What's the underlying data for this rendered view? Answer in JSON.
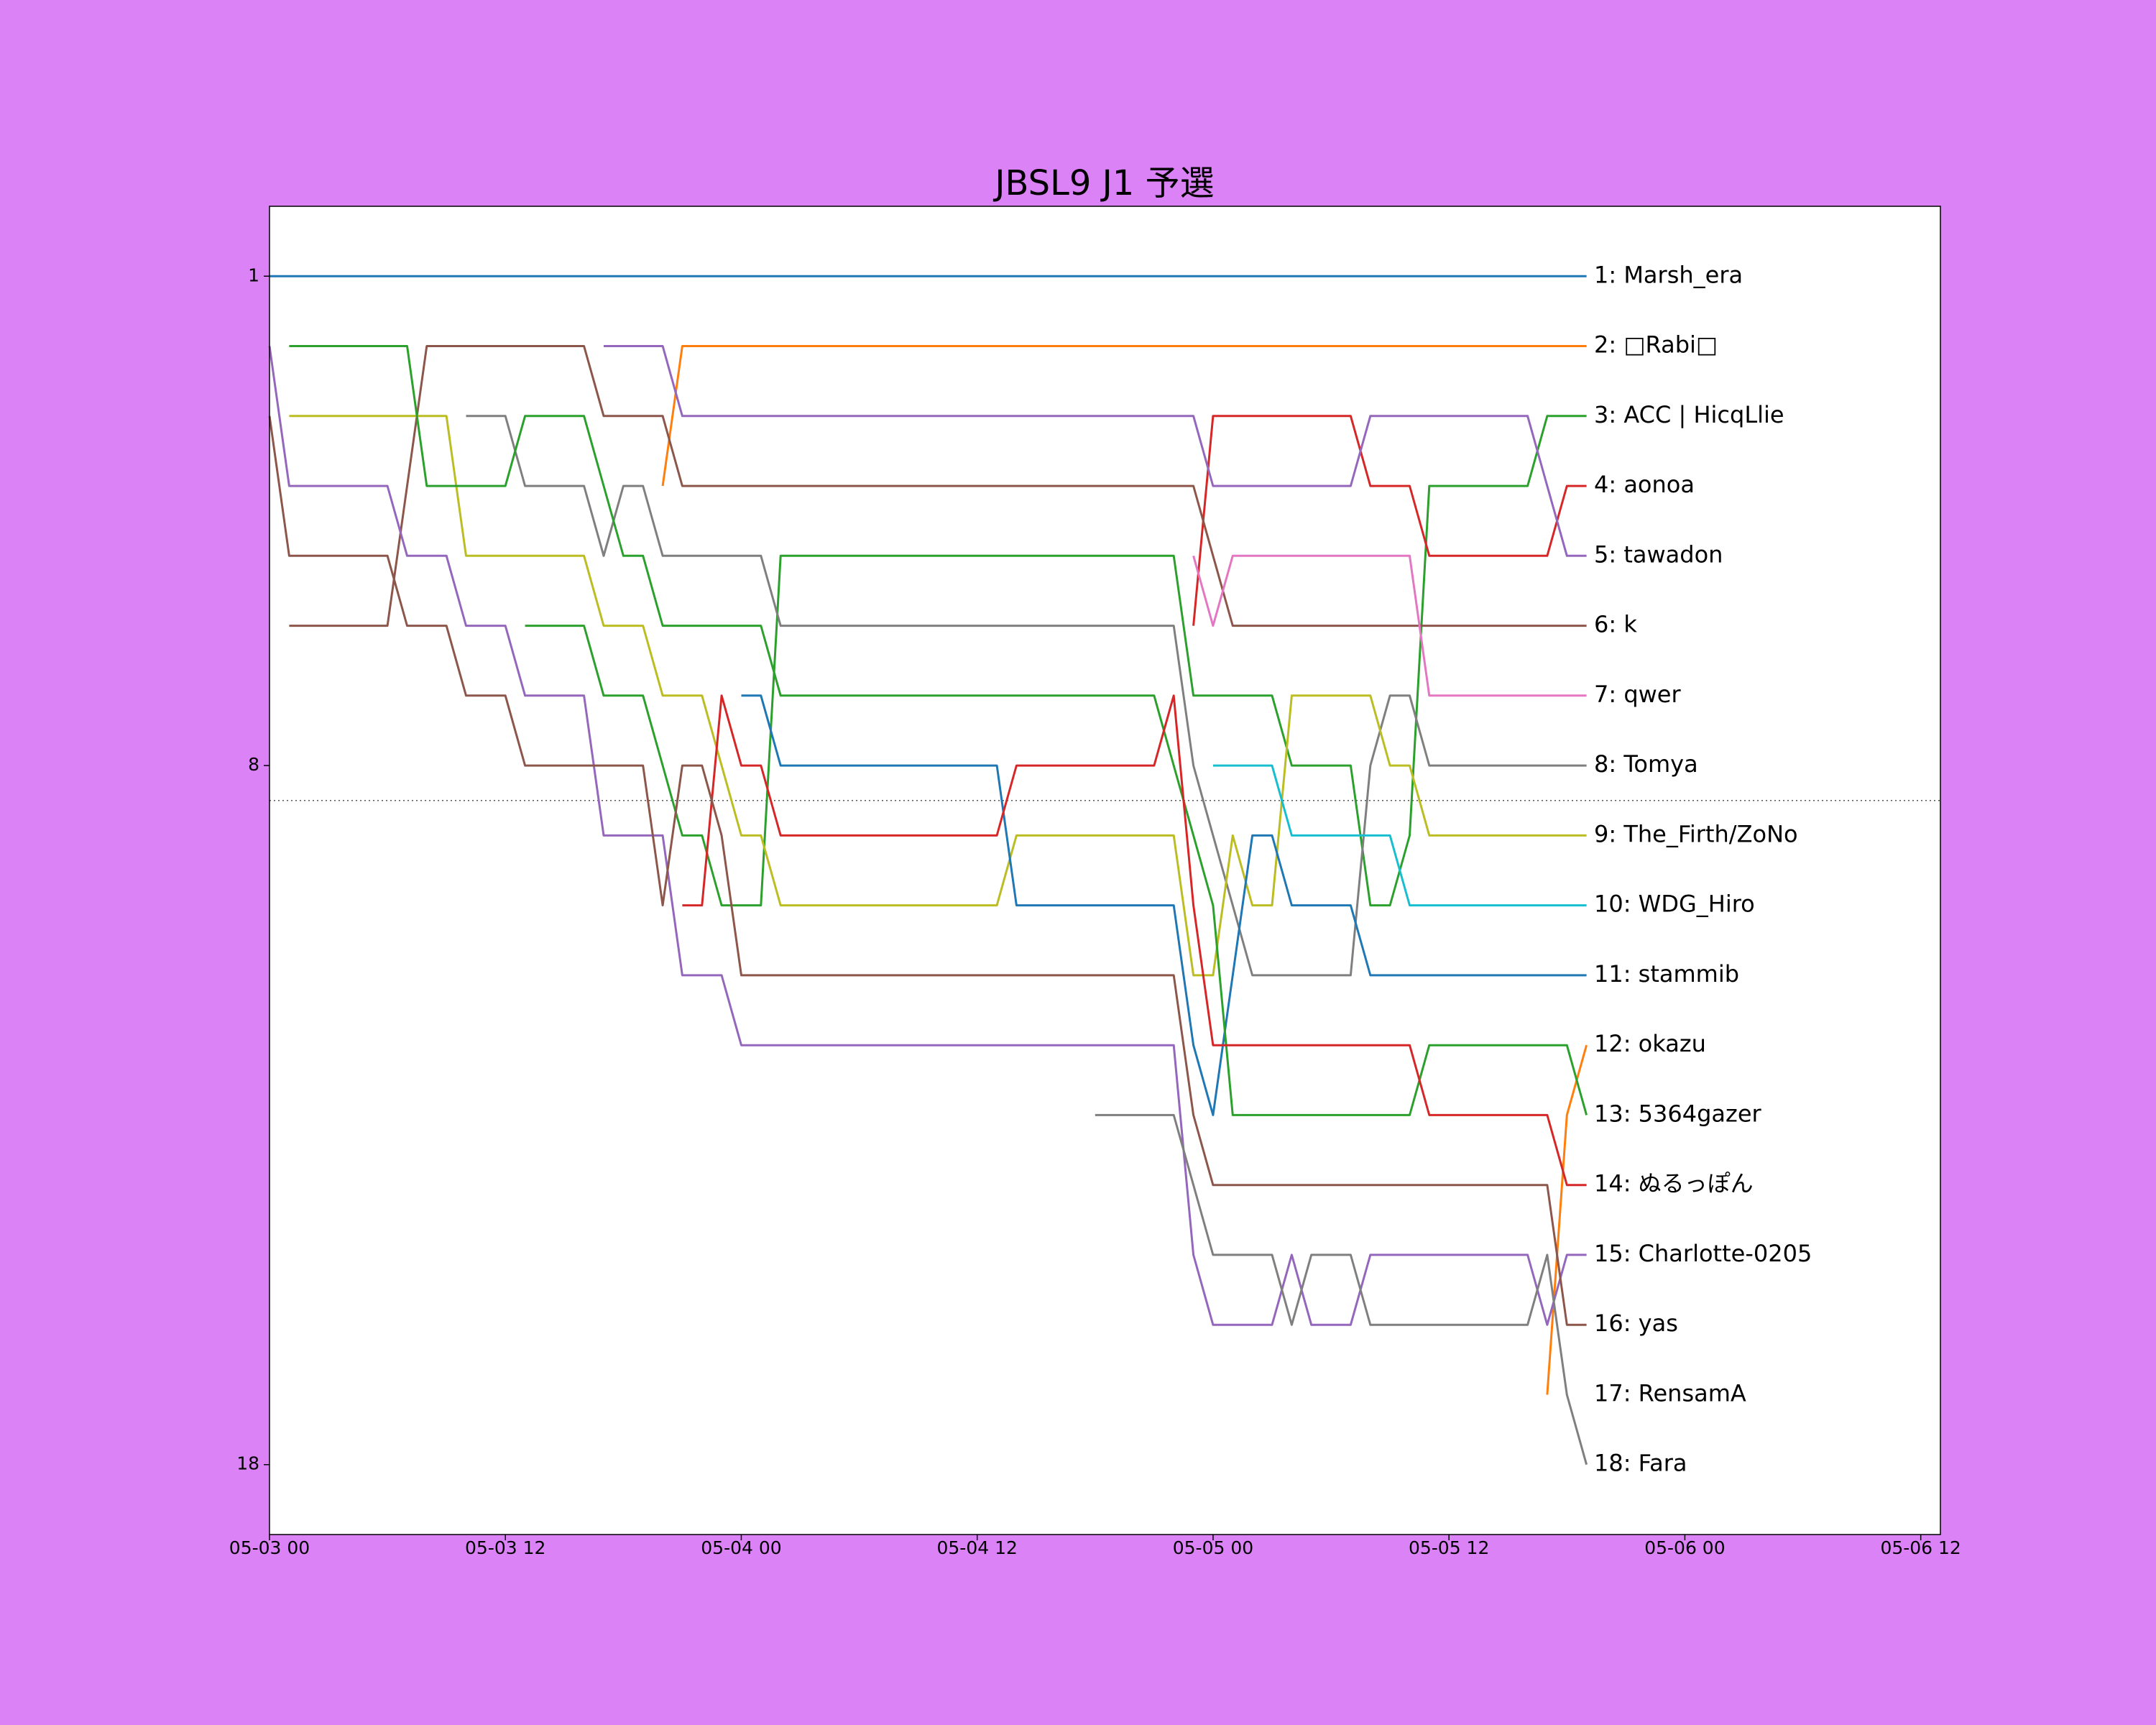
{
  "chart_data": {
    "type": "line",
    "title": "JBSL9 J1 予選",
    "xlim": [
      "05-03 00",
      "05-06 13"
    ],
    "xticks": [
      "05-03 00",
      "05-03 12",
      "05-04 00",
      "05-04 12",
      "05-05 00",
      "05-05 12",
      "05-06 00",
      "05-06 12"
    ],
    "ylim": [
      19,
      0
    ],
    "yticks": [
      1,
      8,
      18
    ],
    "threshold": 8.5,
    "series": [
      {
        "name": "1: Marsh_era",
        "color": "#1f77b4",
        "x": [
          "05-03 00",
          "05-05 19"
        ],
        "values": [
          1,
          1
        ]
      },
      {
        "name": "2: □Rabi□",
        "color": "#ff7f0e",
        "x": [
          "05-03 20",
          "05-03 21",
          "05-05 19"
        ],
        "values": [
          4,
          2,
          2
        ]
      },
      {
        "name": "3: ACC | HicqLlie",
        "color": "#2ca02c",
        "x": [
          "05-03 13",
          "05-03 16",
          "05-03 17",
          "05-03 19",
          "05-03 20",
          "05-03 21",
          "05-03 22",
          "05-03 23",
          "05-04 01",
          "05-04 02",
          "05-04 22",
          "05-04 23",
          "05-05 03",
          "05-05 04",
          "05-05 07",
          "05-05 08",
          "05-05 09",
          "05-05 10",
          "05-05 11",
          "05-05 16",
          "05-05 17",
          "05-05 19"
        ],
        "values": [
          6,
          6,
          7,
          7,
          8,
          9,
          9,
          10,
          10,
          5,
          5,
          7,
          7,
          8,
          8,
          10,
          10,
          9,
          4,
          4,
          3,
          3
        ]
      },
      {
        "name": "4: aonoa",
        "color": "#d62728",
        "x": [
          "05-04 23",
          "05-05 00",
          "05-05 07",
          "05-05 08",
          "05-05 10",
          "05-05 11",
          "05-05 17",
          "05-05 18",
          "05-05 19"
        ],
        "values": [
          6,
          3,
          3,
          4,
          4,
          5,
          5,
          4,
          4
        ]
      },
      {
        "name": "5: tawadon",
        "color": "#9467bd",
        "x": [
          "05-03 17",
          "05-03 20",
          "05-03 21",
          "05-04 23",
          "05-05 00",
          "05-05 07",
          "05-05 08",
          "05-05 16",
          "05-05 17",
          "05-05 18",
          "05-05 19"
        ],
        "values": [
          2,
          2,
          3,
          3,
          4,
          4,
          3,
          3,
          4,
          5,
          5
        ]
      },
      {
        "name": "6: k",
        "color": "#8c564b",
        "x": [
          "05-03 01",
          "05-03 06",
          "05-03 07",
          "05-03 08",
          "05-03 16",
          "05-03 17",
          "05-03 20",
          "05-03 21",
          "05-04 23",
          "05-05 00",
          "05-05 01",
          "05-05 19"
        ],
        "values": [
          6,
          6,
          4,
          2,
          2,
          3,
          3,
          4,
          4,
          5,
          6,
          6
        ]
      },
      {
        "name": "7: qwer",
        "color": "#e377c2",
        "x": [
          "05-04 23",
          "05-05 00",
          "05-05 01",
          "05-05 10",
          "05-05 11",
          "05-05 19"
        ],
        "values": [
          5,
          6,
          5,
          5,
          7,
          7
        ]
      },
      {
        "name": "8: Tomya",
        "color": "#7f7f7f",
        "x": [
          "05-03 10",
          "05-03 12",
          "05-03 13",
          "05-03 16",
          "05-03 17",
          "05-03 18",
          "05-03 19",
          "05-03 20",
          "05-04 01",
          "05-04 02",
          "05-04 22",
          "05-04 23",
          "05-05 00",
          "05-05 01",
          "05-05 02",
          "05-05 07",
          "05-05 08",
          "05-05 09",
          "05-05 10",
          "05-05 11",
          "05-05 19"
        ],
        "values": [
          3,
          3,
          4,
          4,
          5,
          4,
          4,
          5,
          5,
          6,
          6,
          8,
          9,
          10,
          11,
          11,
          8,
          7,
          7,
          8,
          8
        ]
      },
      {
        "name": "9: The_Firth/ZoNo",
        "color": "#bcbd22",
        "x": [
          "05-03 01",
          "05-03 09",
          "05-03 10",
          "05-03 16",
          "05-03 17",
          "05-03 19",
          "05-03 20",
          "05-03 22",
          "05-03 23",
          "05-04 00",
          "05-04 01",
          "05-04 02",
          "05-04 13",
          "05-04 14",
          "05-04 22",
          "05-04 23",
          "05-05 00",
          "05-05 01",
          "05-05 02",
          "05-05 03",
          "05-05 04",
          "05-05 08",
          "05-05 09",
          "05-05 10",
          "05-05 11",
          "05-05 19"
        ],
        "values": [
          3,
          3,
          5,
          5,
          6,
          6,
          7,
          7,
          8,
          9,
          9,
          10,
          10,
          9,
          9,
          11,
          11,
          9,
          10,
          10,
          7,
          7,
          8,
          8,
          9,
          9
        ]
      },
      {
        "name": "10: WDG_Hiro",
        "color": "#17becf",
        "x": [
          "05-05 00",
          "05-05 03",
          "05-05 04",
          "05-05 09",
          "05-05 10",
          "05-05 19"
        ],
        "values": [
          8,
          8,
          9,
          9,
          10,
          10
        ]
      },
      {
        "name": "11: stammib",
        "color": "#1f77b4",
        "x": [
          "05-04 00",
          "05-04 01",
          "05-04 02",
          "05-04 13",
          "05-04 14",
          "05-04 22",
          "05-04 23",
          "05-05 00",
          "05-05 01",
          "05-05 02",
          "05-05 03",
          "05-05 04",
          "05-05 07",
          "05-05 08",
          "05-05 19"
        ],
        "values": [
          7,
          7,
          8,
          8,
          10,
          10,
          12,
          13,
          11,
          9,
          9,
          10,
          10,
          11,
          11
        ]
      },
      {
        "name": "12: okazu",
        "color": "#ff7f0e",
        "x": [
          "05-05 17",
          "05-05 18",
          "05-05 19"
        ],
        "values": [
          17,
          13,
          12
        ]
      },
      {
        "name": "13: 5364gazer",
        "color": "#2ca02c",
        "x": [
          "05-03 01",
          "05-03 07",
          "05-03 08",
          "05-03 12",
          "05-03 13",
          "05-03 16",
          "05-03 17",
          "05-03 18",
          "05-03 19",
          "05-03 20",
          "05-04 01",
          "05-04 02",
          "05-04 21",
          "05-04 22",
          "05-04 23",
          "05-05 00",
          "05-05 01",
          "05-05 10",
          "05-05 11",
          "05-05 18",
          "05-05 19"
        ],
        "values": [
          2,
          2,
          4,
          4,
          3,
          3,
          4,
          5,
          5,
          6,
          6,
          7,
          7,
          8,
          9,
          10,
          13,
          13,
          12,
          12,
          13
        ]
      },
      {
        "name": "14: ぬるっぽん",
        "color": "#d62728",
        "x": [
          "05-03 21",
          "05-03 22",
          "05-03 23",
          "05-04 00",
          "05-04 01",
          "05-04 02",
          "05-04 13",
          "05-04 14",
          "05-04 21",
          "05-04 22",
          "05-04 23",
          "05-05 00",
          "05-05 10",
          "05-05 11",
          "05-05 17",
          "05-05 18",
          "05-05 19"
        ],
        "values": [
          10,
          10,
          7,
          8,
          8,
          9,
          9,
          8,
          8,
          7,
          10,
          12,
          12,
          13,
          13,
          14,
          14
        ]
      },
      {
        "name": "15: Charlotte-0205",
        "color": "#9467bd",
        "x": [
          "05-03 00",
          "05-03 01",
          "05-03 06",
          "05-03 07",
          "05-03 09",
          "05-03 10",
          "05-03 12",
          "05-03 13",
          "05-03 16",
          "05-03 17",
          "05-03 20",
          "05-03 21",
          "05-03 23",
          "05-04 00",
          "05-04 22",
          "05-04 23",
          "05-05 00",
          "05-05 03",
          "05-05 04",
          "05-05 05",
          "05-05 07",
          "05-05 08",
          "05-05 16",
          "05-05 17",
          "05-05 18",
          "05-05 19"
        ],
        "values": [
          2,
          4,
          4,
          5,
          5,
          6,
          6,
          7,
          7,
          9,
          9,
          11,
          11,
          12,
          12,
          15,
          16,
          16,
          15,
          16,
          16,
          15,
          15,
          16,
          15,
          15
        ]
      },
      {
        "name": "16: yas",
        "color": "#8c564b",
        "x": [
          "05-03 00",
          "05-03 01",
          "05-03 06",
          "05-03 07",
          "05-03 09",
          "05-03 10",
          "05-03 12",
          "05-03 13",
          "05-03 19",
          "05-03 20",
          "05-03 21",
          "05-03 22",
          "05-03 23",
          "05-04 00",
          "05-04 22",
          "05-04 23",
          "05-05 00",
          "05-05 17",
          "05-05 18",
          "05-05 19"
        ],
        "values": [
          3,
          5,
          5,
          6,
          6,
          7,
          7,
          8,
          8,
          10,
          8,
          8,
          9,
          11,
          11,
          13,
          14,
          14,
          16,
          16
        ]
      },
      {
        "name": "17: RensamA",
        "color": "#e377c2",
        "x": [],
        "values": []
      },
      {
        "name": "18: Fara",
        "color": "#7f7f7f",
        "x": [
          "05-04 18",
          "05-04 22",
          "05-04 23",
          "05-05 00",
          "05-05 03",
          "05-05 04",
          "05-05 05",
          "05-05 07",
          "05-05 08",
          "05-05 16",
          "05-05 17",
          "05-05 18",
          "05-05 19"
        ],
        "values": [
          13,
          13,
          14,
          15,
          15,
          16,
          15,
          15,
          16,
          16,
          15,
          17,
          18
        ]
      }
    ]
  }
}
